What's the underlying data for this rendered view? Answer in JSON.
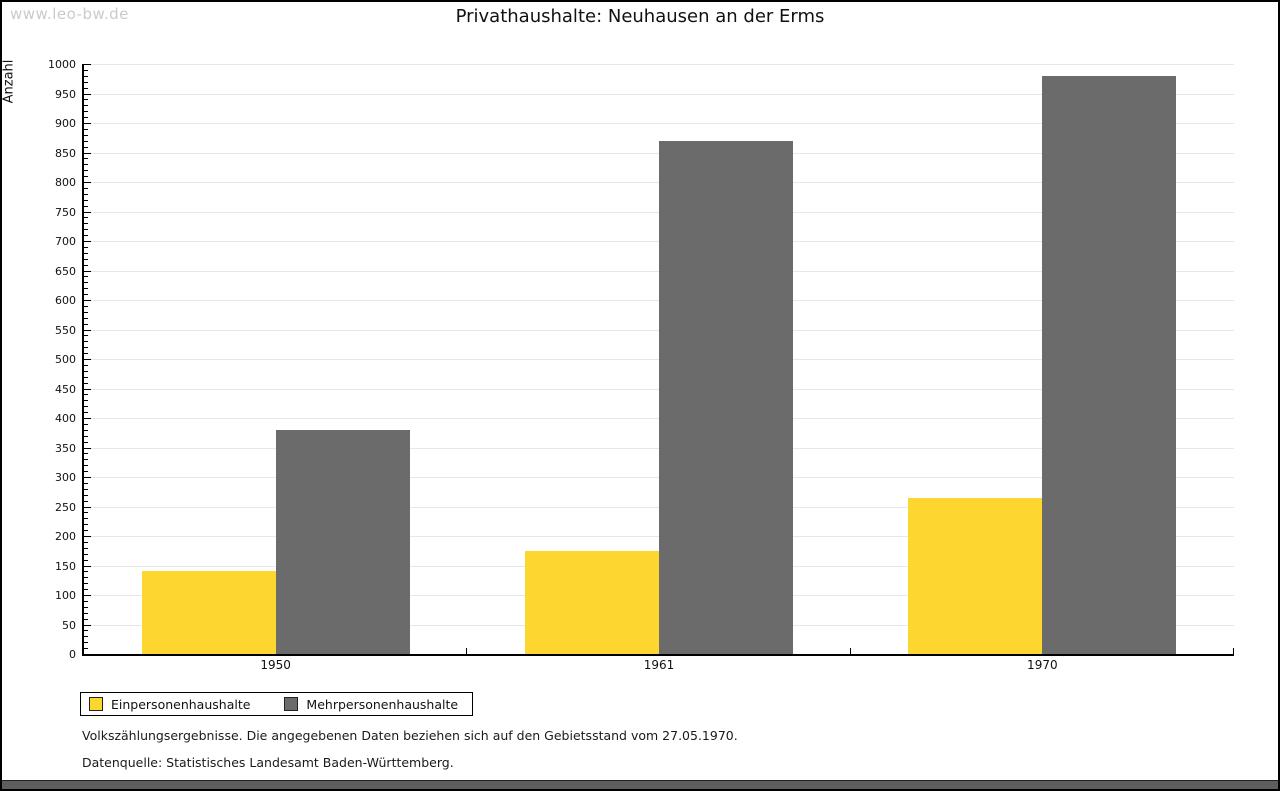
{
  "watermark": "www.leo-bw.de",
  "title": "Privathaushalte: Neuhausen an der Erms",
  "chart_data": {
    "type": "bar",
    "title": "Privathaushalte: Neuhausen an der Erms",
    "categories": [
      "1950",
      "1961",
      "1970"
    ],
    "series": [
      {
        "name": "Einpersonenhaushalte",
        "color": "#FDD62F",
        "values": [
          140,
          175,
          265
        ]
      },
      {
        "name": "Mehrpersonenhaushalte",
        "color": "#6B6B6B",
        "values": [
          380,
          870,
          980
        ]
      }
    ],
    "xlabel": "",
    "ylabel": "Anzahl",
    "ylim": [
      0,
      1000
    ],
    "y_major_step": 50,
    "y_minor_step": 10,
    "grid": true,
    "legend_position": "bottom-left"
  },
  "footnotes": [
    "Volkszählungsergebnisse. Die angegebenen Daten beziehen sich auf den Gebietsstand vom 27.05.1970.",
    "Datenquelle: Statistisches Landesamt Baden-Württemberg."
  ]
}
